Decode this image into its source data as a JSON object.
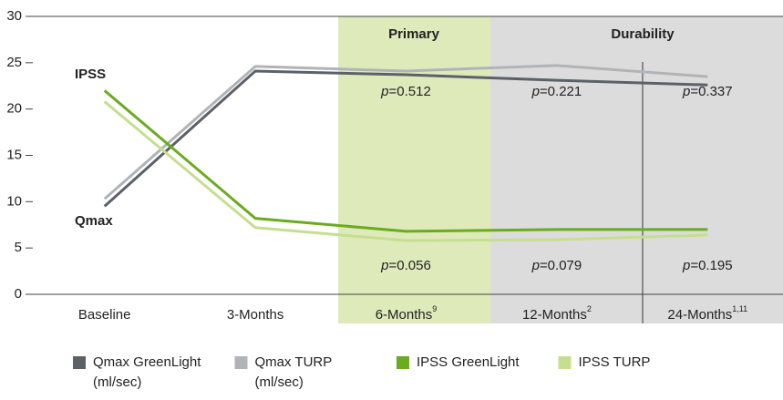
{
  "chart_data": {
    "type": "line",
    "categories": [
      "Baseline",
      "3-Months",
      "6-Months",
      "12-Months",
      "24-Months"
    ],
    "category_notes": [
      null,
      null,
      "9",
      "2",
      "1,11"
    ],
    "ylim": [
      0,
      30
    ],
    "yticks": [
      0,
      5,
      10,
      15,
      20,
      25,
      30
    ],
    "grid": false,
    "series": [
      {
        "name": "Qmax GreenLight (ml/sec)",
        "color": "#5b6167",
        "values": [
          9.5,
          24.1,
          23.7,
          23.1,
          22.6
        ]
      },
      {
        "name": "Qmax TURP (ml/sec)",
        "color": "#b1b4b7",
        "values": [
          10.3,
          24.6,
          24.1,
          24.7,
          23.5
        ]
      },
      {
        "name": "IPSS GreenLight",
        "color": "#6aab1f",
        "values": [
          22.0,
          8.2,
          6.8,
          7.0,
          7.0
        ]
      },
      {
        "name": "IPSS TURP",
        "color": "#c5de90",
        "values": [
          20.8,
          7.2,
          5.8,
          5.9,
          6.4
        ]
      }
    ],
    "region_labels": [
      "Primary",
      "Durability"
    ],
    "series_labels": [
      "IPSS",
      "Qmax"
    ],
    "p_values_qmax": [
      "p=0.512",
      "p=0.221",
      "p=0.337"
    ],
    "p_values_ipss": [
      "p=0.056",
      "p=0.079",
      "p=0.195"
    ],
    "legend": "bottom"
  }
}
